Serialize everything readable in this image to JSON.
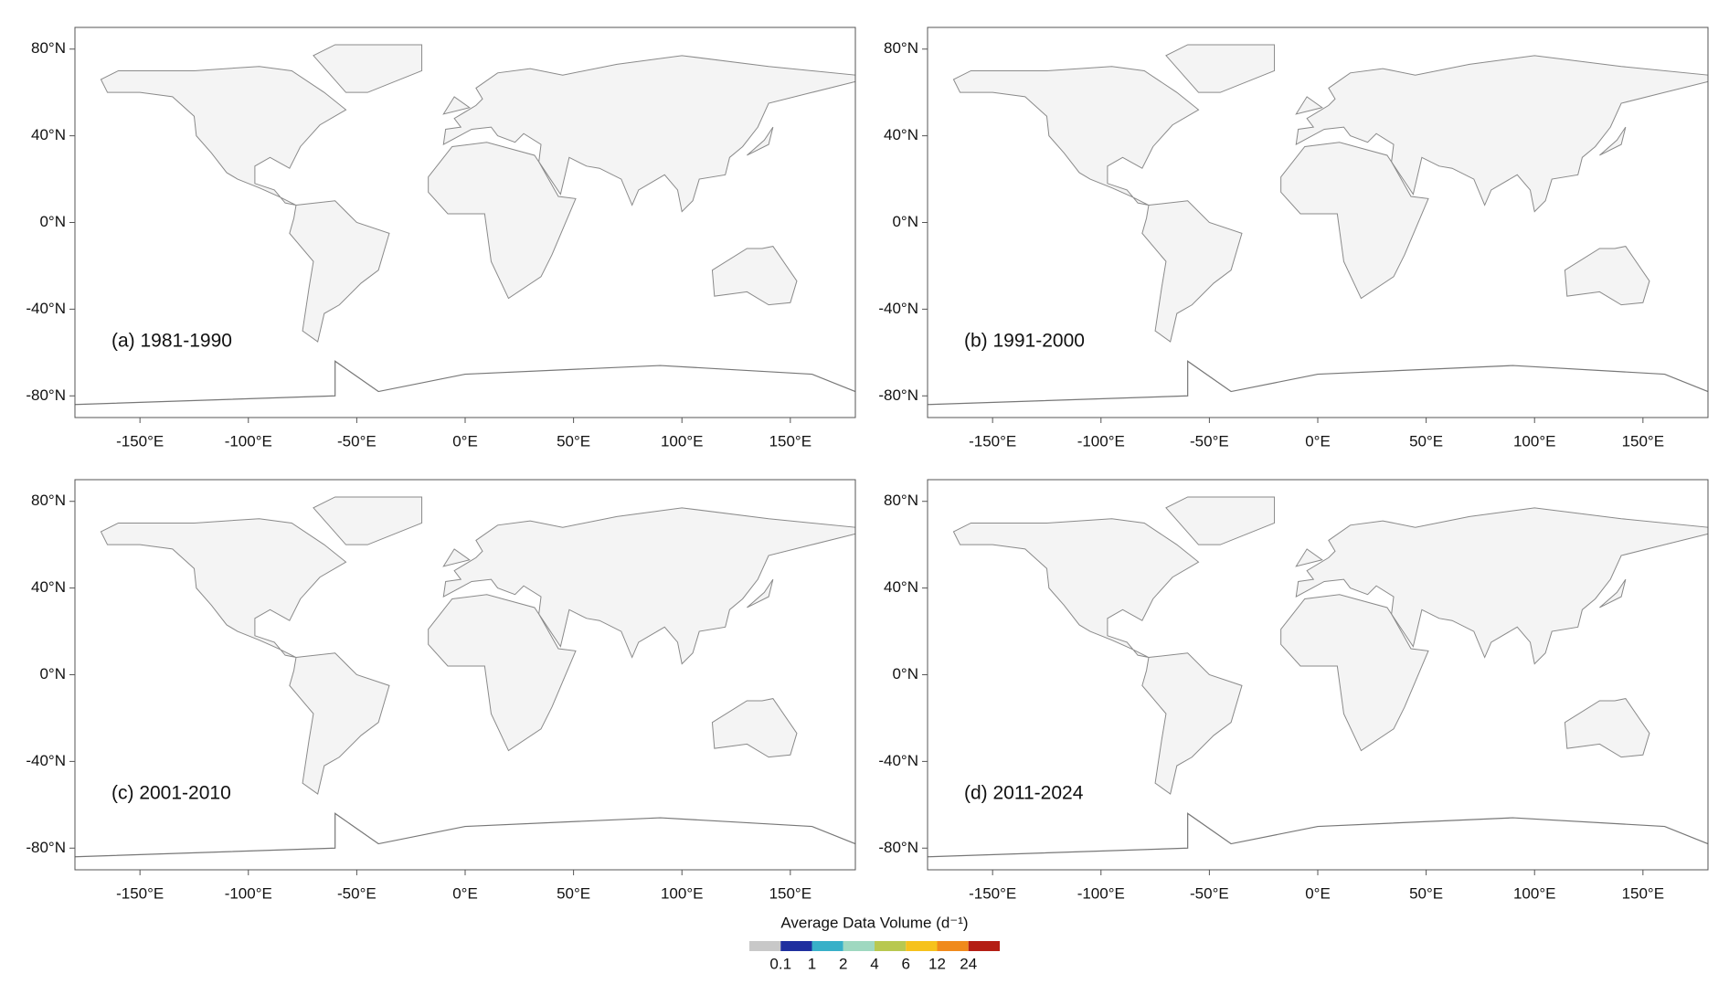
{
  "map": {
    "panels": [
      {
        "label": "(a) 1981-1990"
      },
      {
        "label": "(b) 1991-2000"
      },
      {
        "label": "(c) 2001-2010"
      },
      {
        "label": "(d) 2011-2024"
      }
    ],
    "xlim": [
      -180,
      180
    ],
    "ylim": [
      -90,
      90
    ],
    "xticks": [
      {
        "value": -150,
        "label": "-150°E"
      },
      {
        "value": -100,
        "label": "-100°E"
      },
      {
        "value": -50,
        "label": "-50°E"
      },
      {
        "value": 0,
        "label": "0°E"
      },
      {
        "value": 50,
        "label": "50°E"
      },
      {
        "value": 100,
        "label": "100°E"
      },
      {
        "value": 150,
        "label": "150°E"
      }
    ],
    "yticks": [
      {
        "value": 80,
        "label": "80°N"
      },
      {
        "value": 40,
        "label": "40°N"
      },
      {
        "value": 0,
        "label": "0°N"
      },
      {
        "value": -40,
        "label": "-40°N"
      },
      {
        "value": -80,
        "label": "-80°N"
      }
    ],
    "colorbar": {
      "title": "Average Data Volume (d⁻¹)",
      "colors": [
        "#c8c8c8",
        "#1f2f9f",
        "#38b0c8",
        "#9fd8c0",
        "#b8c850",
        "#f6c21c",
        "#f08a1c",
        "#b41e14"
      ],
      "ticks": [
        0.1,
        1,
        2,
        4,
        6,
        12,
        24
      ]
    }
  }
}
